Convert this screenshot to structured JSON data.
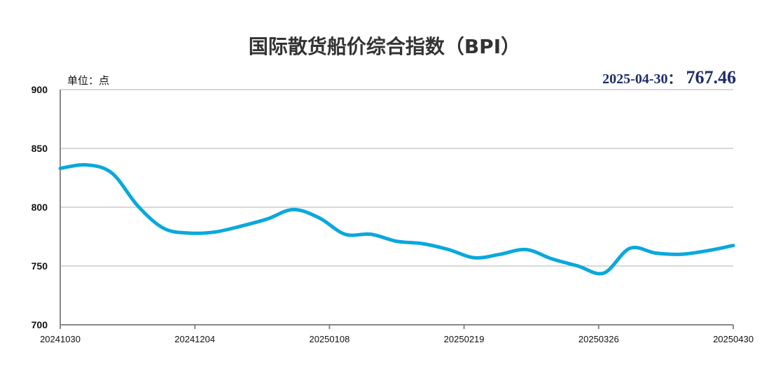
{
  "chart_data": {
    "type": "line",
    "title": "国际散货船价综合指数（BPI）",
    "unit_label": "单位：点",
    "highlight": {
      "date": "2025-04-30",
      "separator": "：",
      "value": "767.46"
    },
    "ylim": [
      700,
      900
    ],
    "yticks": [
      700,
      750,
      800,
      850,
      900
    ],
    "xlim": [
      "2024-10-30",
      "2025-04-30"
    ],
    "xtick_labels": [
      "20241030",
      "20241204",
      "20250108",
      "20250219",
      "20250326",
      "20250430"
    ],
    "grid": true,
    "colors": {
      "line": "#0aa8dc",
      "grid": "#b0b0b0",
      "axis": "#888888"
    },
    "series": [
      {
        "points": [
          [
            "2024-10-30",
            833
          ],
          [
            "2024-11-06",
            836
          ],
          [
            "2024-11-13",
            829
          ],
          [
            "2024-11-20",
            801
          ],
          [
            "2024-11-27",
            782
          ],
          [
            "2024-12-04",
            778
          ],
          [
            "2024-12-11",
            779
          ],
          [
            "2024-12-18",
            784
          ],
          [
            "2024-12-25",
            790
          ],
          [
            "2025-01-01",
            798
          ],
          [
            "2025-01-08",
            791
          ],
          [
            "2025-01-15",
            777
          ],
          [
            "2025-01-22",
            777
          ],
          [
            "2025-01-29",
            771
          ],
          [
            "2025-02-05",
            769
          ],
          [
            "2025-02-12",
            764
          ],
          [
            "2025-02-19",
            757
          ],
          [
            "2025-02-26",
            760
          ],
          [
            "2025-03-05",
            764
          ],
          [
            "2025-03-12",
            756
          ],
          [
            "2025-03-19",
            750
          ],
          [
            "2025-03-26",
            744
          ],
          [
            "2025-04-02",
            765
          ],
          [
            "2025-04-09",
            761
          ],
          [
            "2025-04-16",
            760
          ],
          [
            "2025-04-23",
            763
          ],
          [
            "2025-04-30",
            767.46
          ]
        ]
      }
    ]
  }
}
